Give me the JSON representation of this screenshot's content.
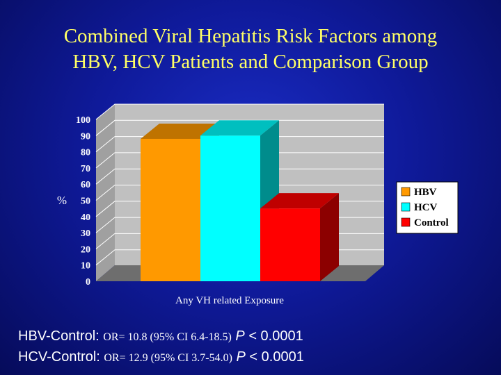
{
  "slide": {
    "title_line1": "Combined Viral Hepatitis Risk Factors among",
    "title_line2": "HBV, HCV Patients and Comparison Group"
  },
  "chart_data": {
    "type": "bar",
    "style": "3d",
    "categories": [
      "Any VH related Exposure"
    ],
    "series": [
      {
        "name": "HBV",
        "values": [
          88
        ],
        "color": "#ff9900"
      },
      {
        "name": "HCV",
        "values": [
          90
        ],
        "color": "#00ffff"
      },
      {
        "name": "Control",
        "values": [
          45
        ],
        "color": "#ff0000"
      }
    ],
    "xlabel": "Any VH related Exposure",
    "ylabel": "%",
    "ylim": [
      0,
      100
    ],
    "yticks": [
      "0",
      "10",
      "20",
      "30",
      "40",
      "50",
      "60",
      "70",
      "80",
      "90",
      "100"
    ],
    "grid": true,
    "legend_position": "right"
  },
  "footer": {
    "line1": {
      "label": "HBV-Control:",
      "or_text": "OR= 10.8 (95% CI 6.4-18.5)",
      "p_label": "P",
      "p_value": "< 0.0001"
    },
    "line2": {
      "label": "HCV-Control:",
      "or_text": "OR= 12.9 (95% CI 3.7-54.0)",
      "p_label": "P",
      "p_value": "< 0.0001"
    }
  }
}
